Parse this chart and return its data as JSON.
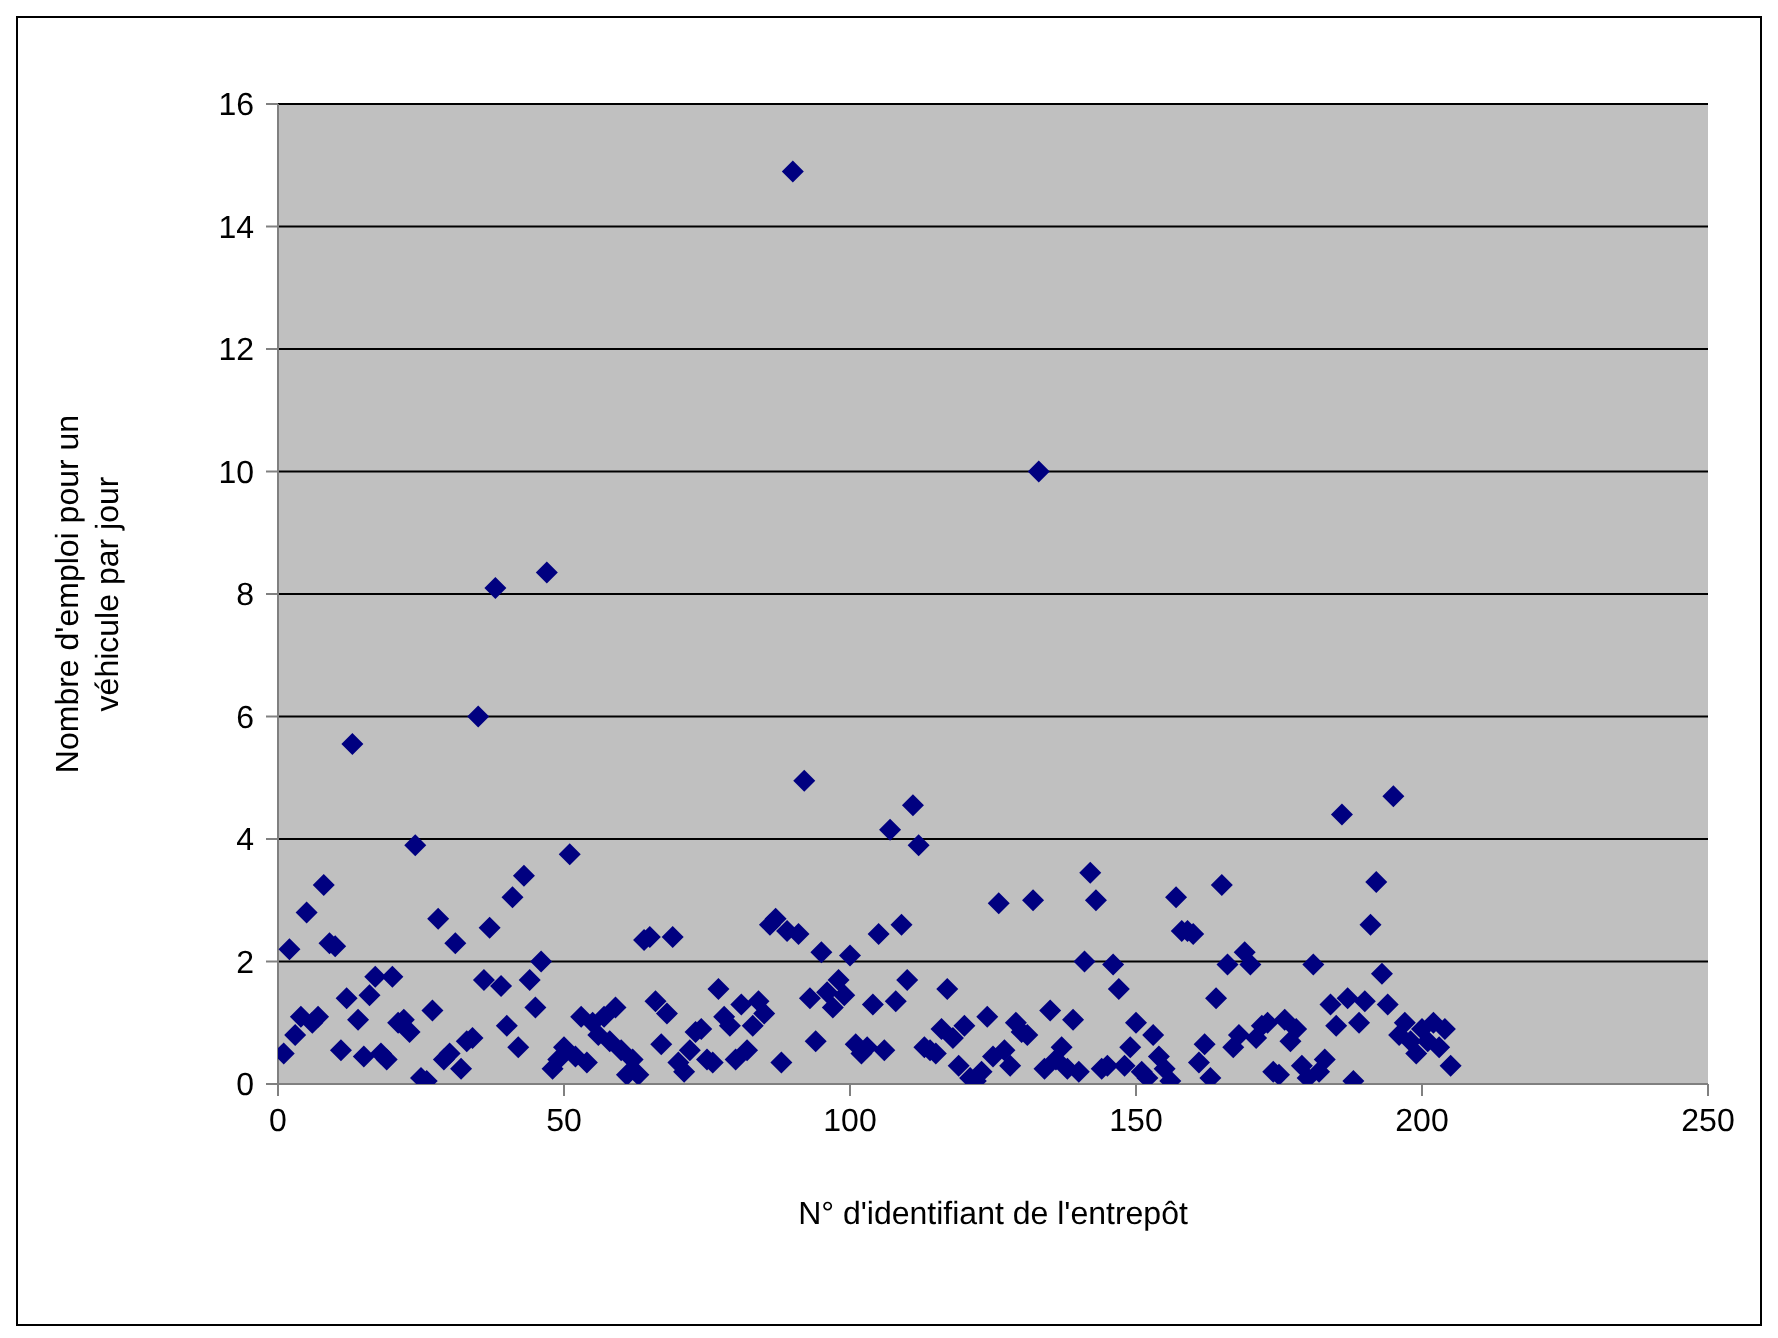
{
  "chart_data": {
    "type": "scatter",
    "xlabel": "N° d'identifiant de l'entrepôt",
    "ylabel": "Nombre d'emploi pour un véhicule par jour",
    "xlim": [
      0,
      250
    ],
    "xticks": [
      0,
      50,
      100,
      150,
      200,
      250
    ],
    "ylim": [
      0,
      16
    ],
    "yticks": [
      0,
      2,
      4,
      6,
      8,
      10,
      12,
      14,
      16
    ],
    "grid": "y",
    "legend": false,
    "marker": "diamond",
    "series": [
      {
        "color": "#000080",
        "x": [
          1,
          2,
          3,
          4,
          5,
          6,
          7,
          8,
          9,
          10,
          11,
          12,
          13,
          14,
          15,
          16,
          17,
          18,
          19,
          20,
          21,
          22,
          23,
          24,
          25,
          26,
          27,
          28,
          29,
          30,
          31,
          32,
          33,
          34,
          35,
          36,
          37,
          38,
          39,
          40,
          41,
          42,
          43,
          44,
          45,
          46,
          47,
          48,
          49,
          50,
          51,
          52,
          53,
          54,
          55,
          56,
          57,
          58,
          59,
          60,
          61,
          62,
          63,
          64,
          65,
          66,
          67,
          68,
          69,
          70,
          71,
          72,
          73,
          74,
          75,
          76,
          77,
          78,
          79,
          80,
          81,
          82,
          83,
          84,
          85,
          86,
          87,
          88,
          89,
          90,
          91,
          92,
          93,
          94,
          95,
          96,
          97,
          98,
          99,
          100,
          101,
          102,
          103,
          104,
          105,
          106,
          107,
          108,
          109,
          110,
          111,
          112,
          113,
          114,
          115,
          116,
          117,
          118,
          119,
          120,
          121,
          122,
          123,
          124,
          125,
          126,
          127,
          128,
          129,
          130,
          131,
          132,
          133,
          134,
          135,
          136,
          137,
          138,
          139,
          140,
          141,
          142,
          143,
          144,
          145,
          146,
          147,
          148,
          149,
          150,
          151,
          152,
          153,
          154,
          155,
          156,
          157,
          158,
          159,
          160,
          161,
          162,
          163,
          164,
          165,
          166,
          167,
          168,
          169,
          170,
          171,
          172,
          173,
          174,
          175,
          176,
          177,
          178,
          179,
          180,
          181,
          182,
          183,
          184,
          185,
          186,
          187,
          188,
          189,
          190,
          191,
          192,
          193,
          194,
          195,
          196,
          197,
          198,
          199,
          200,
          201,
          202,
          203,
          204,
          205
        ],
        "values": [
          0.5,
          2.2,
          0.8,
          1.1,
          2.8,
          1.0,
          1.1,
          3.25,
          2.3,
          2.25,
          0.55,
          1.4,
          5.55,
          1.05,
          0.45,
          1.45,
          1.75,
          0.5,
          0.4,
          1.75,
          1.0,
          1.05,
          0.85,
          3.9,
          0.1,
          0.05,
          1.2,
          2.7,
          0.4,
          0.5,
          2.3,
          0.25,
          0.7,
          0.75,
          6.0,
          1.7,
          2.55,
          8.1,
          1.6,
          0.95,
          3.05,
          0.6,
          3.4,
          1.7,
          1.25,
          2.0,
          8.35,
          0.25,
          0.4,
          0.6,
          3.75,
          0.45,
          1.1,
          0.35,
          1.0,
          0.8,
          1.1,
          0.7,
          1.25,
          0.55,
          0.15,
          0.4,
          0.15,
          2.35,
          2.4,
          1.35,
          0.65,
          1.15,
          2.4,
          0.35,
          0.2,
          0.55,
          0.85,
          0.9,
          0.4,
          0.35,
          1.55,
          1.1,
          0.95,
          0.4,
          1.3,
          0.55,
          0.95,
          1.35,
          1.15,
          2.6,
          2.7,
          0.35,
          2.5,
          14.9,
          2.45,
          4.95,
          1.4,
          0.7,
          2.15,
          1.5,
          1.25,
          1.7,
          1.45,
          2.1,
          0.65,
          0.5,
          0.6,
          1.3,
          2.45,
          0.55,
          4.15,
          1.35,
          2.6,
          1.7,
          4.55,
          3.9,
          0.6,
          0.55,
          0.5,
          0.9,
          1.55,
          0.75,
          0.3,
          0.95,
          0.1,
          0.05,
          0.2,
          1.1,
          0.45,
          2.95,
          0.55,
          0.3,
          1.0,
          0.85,
          0.8,
          3.0,
          10.0,
          0.25,
          1.2,
          0.4,
          0.6,
          0.25,
          1.05,
          0.2,
          2.0,
          3.45,
          3.0,
          0.25,
          0.3,
          1.95,
          1.55,
          0.3,
          0.6,
          1.0,
          0.2,
          0.1,
          0.8,
          0.45,
          0.25,
          0.05,
          3.05,
          2.5,
          2.5,
          2.45,
          0.35,
          0.65,
          0.1,
          1.4,
          3.25,
          1.95,
          0.6,
          0.8,
          2.15,
          1.95,
          0.75,
          0.95,
          1.0,
          0.2,
          0.15,
          1.05,
          0.7,
          0.9,
          0.3,
          0.1,
          1.95,
          0.2,
          0.4,
          1.3,
          0.95,
          4.4,
          1.4,
          0.05,
          1.0,
          1.35,
          2.6,
          3.3,
          1.8,
          1.3,
          4.7,
          0.8,
          1.0,
          0.7,
          0.5,
          0.9,
          0.7,
          1.0,
          0.6,
          0.9,
          0.3
        ]
      }
    ]
  }
}
